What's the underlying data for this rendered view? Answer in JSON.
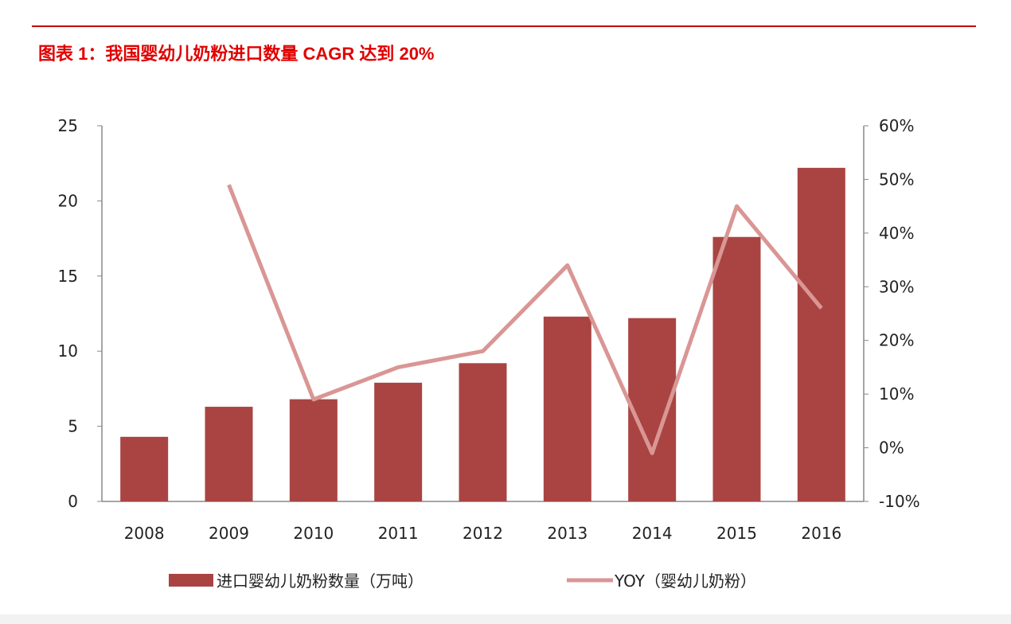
{
  "title": "图表 1：我国婴幼儿奶粉进口数量 CAGR 达到 20%",
  "chart_data": {
    "type": "bar+line",
    "title": "图表 1：我国婴幼儿奶粉进口数量 CAGR 达到 20%",
    "categories": [
      "2008",
      "2009",
      "2010",
      "2011",
      "2012",
      "2013",
      "2014",
      "2015",
      "2016"
    ],
    "series": [
      {
        "name": "进口婴幼儿奶粉数量（万吨）",
        "type": "bar",
        "axis": "left",
        "color": "#a94442",
        "values": [
          4.3,
          6.3,
          6.8,
          7.9,
          9.2,
          12.3,
          12.2,
          17.6,
          22.2
        ]
      },
      {
        "name": "YOY（婴幼儿奶粉）",
        "type": "line",
        "axis": "right",
        "color": "#d99694",
        "values": [
          null,
          49,
          9,
          15,
          18,
          34,
          -1,
          45,
          26
        ]
      }
    ],
    "y_left": {
      "lim": [
        0,
        25
      ],
      "ticks": [
        "0",
        "5",
        "10",
        "15",
        "20",
        "25"
      ]
    },
    "y_right": {
      "lim": [
        -10,
        60
      ],
      "ticks": [
        "-10%",
        "0%",
        "10%",
        "20%",
        "30%",
        "40%",
        "50%",
        "60%"
      ]
    },
    "grid": false,
    "legend": "bottom"
  }
}
